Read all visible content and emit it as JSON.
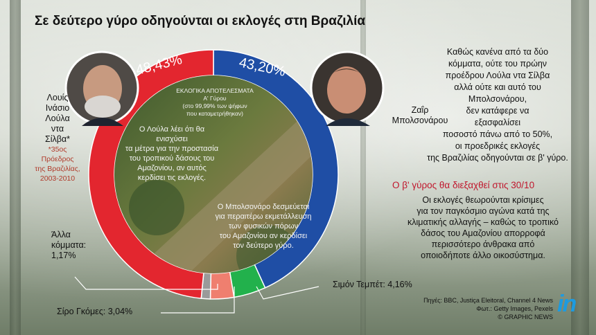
{
  "title": "Σε δεύτερο γύρο οδηγούνται οι εκλογές στη Βραζιλία",
  "colors": {
    "lula_red": "#e3262f",
    "bolsonaro_blue": "#1f4ea5",
    "gomes_salmon": "#ef7f6f",
    "tebet_green": "#22b14c",
    "others_grey": "#9a9a9a",
    "accent_red_text": "#c0162c",
    "logo_blue": "#1d9be0"
  },
  "chart_data": {
    "type": "pie",
    "title": "ΕΚΛΟΓΙΚΑ ΑΠΟΤΕΛΕΣΜΑΤΑ",
    "subtitle": "Α' Γύρου (στο 99,99% των ψήφων που καταμετρήθηκαν)",
    "slices": [
      {
        "name": "Λούλα",
        "value": 48.43
      },
      {
        "name": "Μπολσονάρου",
        "value": 43.2
      },
      {
        "name": "Σιμόν Τεμπέτ",
        "value": 4.16
      },
      {
        "name": "Σίρο Γκόμες",
        "value": 3.04
      },
      {
        "name": "Άλλα κόμματα",
        "value": 1.17
      }
    ]
  },
  "ring": {
    "lula_pct": "48,43%",
    "bolsonaro_pct": "43,20%",
    "results_title": "ΕΚΛΟΓΙΚΑ ΑΠΟΤΕΛΕΣΜΑΤΑ",
    "results_sub1": "Α' Γύρου",
    "results_sub2": "(στο 99,99% των ψήφων",
    "results_sub3": "που καταμετρήθηκαν)",
    "lula_note": [
      "Ο Λούλα λέει ότι θα ενισχύσει",
      "τα μέτρα για την προστασία",
      "του τροπικού δάσους του",
      "Αμαζονίου, αν αυτός",
      "κερδίσει τις εκλογές."
    ],
    "bolso_note": [
      "Ο Μπολσονάρο δεσμεύεται",
      "για περαιτέρω εκμετάλλευση",
      "των φυσικών πόρων",
      "του Αμαζονίου αν κερδίσει",
      "τον δεύτερο γύρο."
    ]
  },
  "lula": {
    "name": [
      "Λουίς",
      "Ινάσιο",
      "Λούλα",
      "ντα",
      "Σίλβα*"
    ],
    "footnote": [
      "*35ος",
      "Πρόεδρος",
      "της Βραζιλίας,",
      "2003-2010"
    ]
  },
  "bolsonaro": {
    "name": [
      "Ζαΐρ",
      "Μπολσονάρου"
    ]
  },
  "others": {
    "label1": "Άλλα",
    "label2": "κόμματα:",
    "value": "1,17%"
  },
  "tebet": {
    "label": "Σιμόν Τεμπέτ: 4,16%"
  },
  "gomes": {
    "label": "Σίρο Γκόμες: 3,04%"
  },
  "right": {
    "para1": [
      "Καθώς κανένα από τα δύο",
      "κόμματα, ούτε του πρώην",
      "προέδρου Λούλα ντα Σίλβα",
      "αλλά ούτε και αυτό του",
      "Μπολσονάρου,",
      "δεν κατάφερε να",
      "εξασφαλίσει",
      "ποσοστό πάνω από το 50%,",
      "οι προεδρικές εκλογές",
      "της Βραζιλίας οδηγούνται σε β' γύρο."
    ],
    "heading": "Ο β' γύρος θα διεξαχθεί στις 30/10",
    "para2": [
      "Οι εκλογές θεωρούνται κρίσιμες",
      "για τον παγκόσμιο αγώνα κατά της",
      "κλιματικής αλλαγής – καθώς το τροπικό",
      "δάσος του Αμαζονίου απορροφά",
      "περισσότερο άνθρακα από",
      "οποιοδήποτε άλλο οικοσύστημα."
    ]
  },
  "credits": {
    "sources": "Πηγές: BBC, Justiça Eleitoral, Channel 4 News",
    "photos": "Φωτ.: Getty Images, Pexels",
    "copyright": "© GRAPHIC NEWS"
  },
  "logo": "in"
}
